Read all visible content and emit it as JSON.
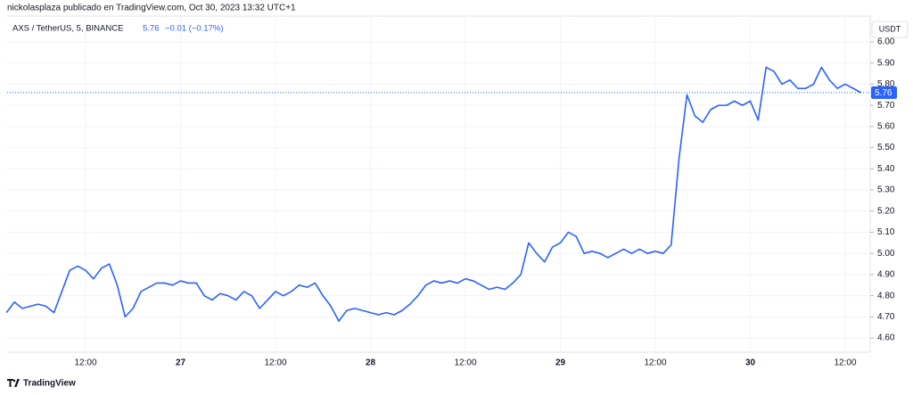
{
  "chart_data": {
    "type": "line",
    "attribution": "nickolasplaza publicado en TradingView.com, Oct 30, 2023 13:32 UTC+1",
    "symbol": "AXS / TetherUS, 5, BINANCE",
    "last_label": "5.76",
    "change": "−0.01 (−0.17%)",
    "unit": "USDT",
    "brand": "TradingView",
    "color": "#2962ff",
    "grid": true,
    "ylim": [
      4.533,
      6.122
    ],
    "yticks": [
      {
        "value": 4.6,
        "label": "4.60"
      },
      {
        "value": 4.7,
        "label": "4.70"
      },
      {
        "value": 4.8,
        "label": "4.80"
      },
      {
        "value": 4.9,
        "label": "4.90"
      },
      {
        "value": 5.0,
        "label": "5.00"
      },
      {
        "value": 5.1,
        "label": "5.10"
      },
      {
        "value": 5.2,
        "label": "5.20"
      },
      {
        "value": 5.3,
        "label": "5.30"
      },
      {
        "value": 5.4,
        "label": "5.40"
      },
      {
        "value": 5.5,
        "label": "5.50"
      },
      {
        "value": 5.6,
        "label": "5.60"
      },
      {
        "value": 5.7,
        "label": "5.70"
      },
      {
        "value": 5.8,
        "label": "5.80"
      },
      {
        "value": 5.9,
        "label": "5.90"
      },
      {
        "value": 6.0,
        "label": "6.00"
      }
    ],
    "categories": [
      null,
      null,
      null,
      null,
      null,
      null,
      null,
      null,
      null,
      null,
      "12:00",
      null,
      null,
      null,
      null,
      null,
      null,
      null,
      null,
      null,
      null,
      null,
      "27",
      null,
      null,
      null,
      null,
      null,
      null,
      null,
      null,
      null,
      null,
      null,
      "12:00",
      null,
      null,
      null,
      null,
      null,
      null,
      null,
      null,
      null,
      null,
      null,
      "28",
      null,
      null,
      null,
      null,
      null,
      null,
      null,
      null,
      null,
      null,
      null,
      "12:00",
      null,
      null,
      null,
      null,
      null,
      null,
      null,
      null,
      null,
      null,
      null,
      "29",
      null,
      null,
      null,
      null,
      null,
      null,
      null,
      null,
      null,
      null,
      null,
      "12:00",
      null,
      null,
      null,
      null,
      null,
      null,
      null,
      null,
      null,
      null,
      null,
      "30",
      null,
      null,
      null,
      null,
      null,
      null,
      null,
      null,
      null,
      null,
      null,
      "12:00",
      null,
      null
    ],
    "values": [
      4.72,
      4.77,
      4.74,
      4.75,
      4.76,
      4.75,
      4.72,
      4.82,
      4.92,
      4.94,
      4.92,
      4.88,
      4.93,
      4.95,
      4.85,
      4.7,
      4.74,
      4.82,
      4.84,
      4.86,
      4.86,
      4.85,
      4.87,
      4.86,
      4.86,
      4.8,
      4.78,
      4.81,
      4.8,
      4.78,
      4.82,
      4.8,
      4.74,
      4.78,
      4.82,
      4.8,
      4.82,
      4.85,
      4.84,
      4.86,
      4.8,
      4.75,
      4.68,
      4.73,
      4.74,
      4.73,
      4.72,
      4.71,
      4.72,
      4.71,
      4.73,
      4.76,
      4.8,
      4.85,
      4.87,
      4.86,
      4.87,
      4.86,
      4.88,
      4.87,
      4.85,
      4.83,
      4.84,
      4.83,
      4.86,
      4.9,
      5.05,
      5.0,
      4.96,
      5.03,
      5.05,
      5.1,
      5.08,
      5.0,
      5.01,
      5.0,
      4.98,
      5.0,
      5.02,
      5.0,
      5.02,
      5.0,
      5.01,
      5.0,
      5.04,
      5.45,
      5.75,
      5.65,
      5.62,
      5.68,
      5.7,
      5.7,
      5.72,
      5.7,
      5.72,
      5.63,
      5.88,
      5.86,
      5.8,
      5.82,
      5.78,
      5.78,
      5.8,
      5.88,
      5.82,
      5.78,
      5.8,
      5.78,
      5.76
    ]
  }
}
